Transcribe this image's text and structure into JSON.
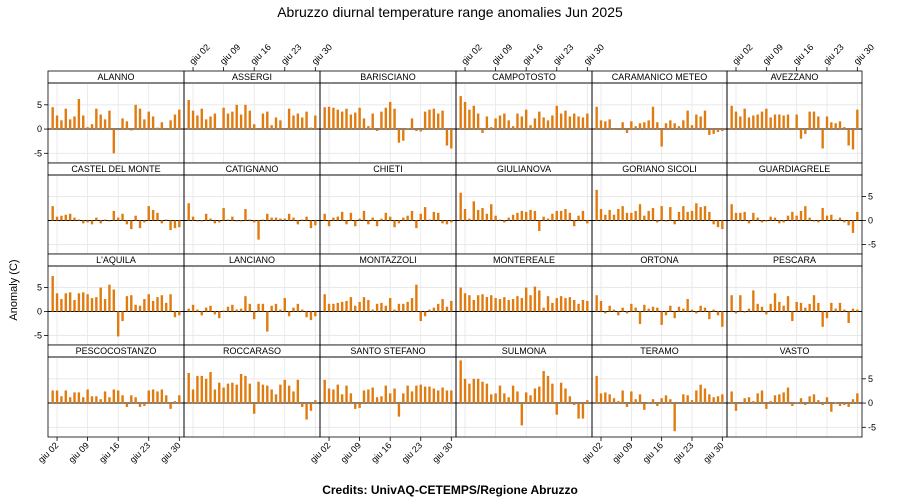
{
  "chart_data": {
    "type": "bar",
    "title": "Abruzzo diurnal temperature range anomalies Jun 2025",
    "ylabel": "Anomaly (C)",
    "credits": "Credits: UnivAQ-CETEMPS/Regione Abruzzo",
    "ylim": [
      -7,
      9.5
    ],
    "yticks": [
      -5,
      0,
      5
    ],
    "xticks": [
      "giu 02",
      "giu 09",
      "giu 16",
      "giu 23",
      "giu 30"
    ],
    "days": [
      1,
      2,
      3,
      4,
      5,
      6,
      7,
      8,
      9,
      10,
      11,
      12,
      13,
      14,
      15,
      16,
      17,
      18,
      19,
      20,
      21,
      22,
      23,
      24,
      25,
      26,
      27,
      28,
      29,
      30
    ],
    "grid": true,
    "bar_color": "#e07b10",
    "panels": [
      {
        "name": "ALANNO",
        "values": [
          4.5,
          2.8,
          1.8,
          4.2,
          2.0,
          2.6,
          6.2,
          2.8,
          0.4,
          1.0,
          4.2,
          3.0,
          2.0,
          3.8,
          -5.0,
          -0.2,
          2.2,
          1.6,
          -0.3,
          5.0,
          4.2,
          2.0,
          3.6,
          2.6,
          0.3,
          1.4,
          -0.2,
          1.8,
          3.0,
          4.0
        ]
      },
      {
        "name": "ASSERGI",
        "values": [
          6.0,
          3.8,
          2.8,
          4.2,
          2.0,
          2.6,
          3.2,
          -0.2,
          4.4,
          3.2,
          3.6,
          5.0,
          3.0,
          5.0,
          3.8,
          1.0,
          -0.2,
          3.2,
          3.6,
          0.8,
          2.4,
          1.8,
          -0.1,
          4.2,
          2.8,
          3.2,
          2.4,
          3.6,
          0.3,
          2.8
        ]
      },
      {
        "name": "BARISCIANO",
        "values": [
          4.5,
          4.6,
          4.4,
          4.0,
          3.6,
          4.2,
          3.0,
          3.4,
          4.4,
          2.2,
          0.6,
          3.2,
          -0.4,
          3.6,
          4.4,
          5.6,
          4.2,
          -2.8,
          -2.4,
          0.2,
          2.2,
          -0.4,
          -0.5,
          3.6,
          4.0,
          4.2,
          3.2,
          3.8,
          -3.4,
          -4.0
        ]
      },
      {
        "name": "CAMPOTOSTO",
        "values": [
          6.8,
          5.6,
          4.0,
          4.8,
          3.2,
          -0.8,
          2.6,
          0.4,
          2.2,
          2.8,
          3.2,
          1.8,
          0.6,
          3.2,
          2.6,
          4.0,
          0.8,
          2.2,
          3.6,
          2.4,
          1.8,
          2.8,
          4.8,
          3.2,
          3.8,
          2.6,
          3.2,
          2.6,
          2.4,
          3.2
        ]
      },
      {
        "name": "CARAMANICO METEO",
        "values": [
          4.6,
          1.8,
          1.6,
          2.0,
          0.0,
          -0.2,
          1.4,
          -0.8,
          1.6,
          0.6,
          1.2,
          1.4,
          1.8,
          4.6,
          1.4,
          -3.6,
          1.2,
          1.8,
          1.2,
          0.6,
          1.8,
          3.8,
          0.8,
          3.0,
          2.6,
          3.8,
          -1.2,
          -1.0,
          -0.6,
          -0.4
        ]
      },
      {
        "name": "AVEZZANO",
        "values": [
          4.8,
          3.6,
          2.6,
          4.2,
          2.4,
          2.8,
          3.0,
          3.6,
          4.2,
          2.4,
          3.0,
          3.0,
          2.8,
          3.0,
          -0.2,
          3.0,
          -2.0,
          -1.0,
          3.6,
          3.6,
          2.6,
          -4.0,
          2.6,
          1.4,
          1.2,
          1.6,
          0.4,
          -3.4,
          -4.2,
          4.0
        ]
      },
      {
        "name": "CASTEL DEL MONTE",
        "values": [
          3.0,
          0.8,
          1.0,
          1.2,
          1.4,
          0.6,
          0.2,
          -0.6,
          -0.4,
          -0.8,
          0.6,
          -0.6,
          0.2,
          -0.2,
          2.0,
          0.6,
          1.4,
          -0.8,
          -1.8,
          1.0,
          -1.6,
          -0.4,
          3.0,
          2.2,
          1.6,
          -0.6,
          0.2,
          -2.0,
          -1.6,
          -1.4
        ]
      },
      {
        "name": "CATIGNANO",
        "values": [
          3.6,
          0.8,
          -0.2,
          -0.2,
          1.4,
          0.4,
          -0.6,
          -0.4,
          2.6,
          0.2,
          0.8,
          -0.2,
          -0.2,
          2.4,
          0.2,
          -0.4,
          -4.0,
          0.2,
          1.4,
          0.6,
          0.6,
          0.4,
          0.4,
          1.4,
          0.6,
          -0.8,
          0.2,
          0.8,
          -1.6,
          -1.0
        ]
      },
      {
        "name": "CHIETI",
        "values": [
          1.4,
          -1.2,
          0.6,
          0.8,
          1.8,
          -0.8,
          1.6,
          -1.2,
          0.4,
          2.0,
          -0.8,
          0.6,
          -1.2,
          0.4,
          1.6,
          0.8,
          -1.4,
          -0.6,
          0.6,
          1.0,
          2.0,
          -1.6,
          1.4,
          2.8,
          0.2,
          1.8,
          1.6,
          -0.6,
          -0.8,
          -0.4
        ]
      },
      {
        "name": "GIULIANOVA",
        "values": [
          5.8,
          2.4,
          0.4,
          4.0,
          2.2,
          2.6,
          1.4,
          3.4,
          1.0,
          0.2,
          -0.4,
          0.6,
          1.2,
          1.6,
          2.0,
          1.8,
          2.2,
          2.0,
          -2.2,
          0.8,
          0.4,
          1.4,
          2.0,
          2.0,
          2.4,
          1.6,
          -1.2,
          1.0,
          2.0,
          -0.6
        ]
      },
      {
        "name": "GORIANO SICOLI",
        "values": [
          6.4,
          2.4,
          1.2,
          2.2,
          1.2,
          2.4,
          3.0,
          1.6,
          1.6,
          2.0,
          3.4,
          1.0,
          2.0,
          2.6,
          -0.4,
          3.0,
          -0.2,
          2.8,
          -0.8,
          1.8,
          3.0,
          1.8,
          2.0,
          3.6,
          2.8,
          3.0,
          1.8,
          -0.8,
          -1.4,
          -1.8
        ]
      },
      {
        "name": "GUARDIAGRELE",
        "values": [
          3.4,
          1.6,
          1.6,
          1.8,
          -0.6,
          1.6,
          0.6,
          -0.4,
          -0.2,
          0.8,
          0.6,
          -0.6,
          -0.4,
          1.0,
          1.8,
          1.0,
          2.0,
          3.0,
          0.6,
          -0.2,
          -0.4,
          2.6,
          1.0,
          1.2,
          0.2,
          0.6,
          -0.4,
          -1.0,
          -2.6,
          1.8
        ]
      },
      {
        "name": "L'AQUILA",
        "values": [
          7.4,
          3.8,
          2.6,
          3.8,
          4.0,
          2.4,
          3.8,
          4.0,
          3.6,
          2.8,
          3.0,
          5.0,
          2.6,
          5.6,
          4.6,
          -5.2,
          -2.0,
          3.2,
          3.4,
          1.4,
          1.2,
          2.6,
          3.6,
          2.2,
          3.0,
          3.4,
          1.8,
          3.6,
          -1.2,
          -0.8
        ]
      },
      {
        "name": "LANCIANO",
        "values": [
          0.6,
          1.4,
          0.4,
          -0.8,
          0.8,
          1.2,
          -0.6,
          -1.4,
          0.2,
          1.0,
          1.4,
          0.4,
          0.6,
          3.2,
          1.6,
          -1.6,
          1.6,
          1.6,
          -4.2,
          1.2,
          1.6,
          0.4,
          2.8,
          -1.0,
          0.8,
          1.6,
          0.4,
          -1.2,
          -1.8,
          -1.0
        ]
      },
      {
        "name": "MONTAZZOLI",
        "values": [
          3.6,
          1.6,
          1.6,
          1.8,
          2.0,
          2.2,
          3.0,
          1.2,
          2.0,
          3.0,
          2.4,
          0.4,
          1.6,
          1.8,
          1.2,
          2.8,
          0.4,
          1.6,
          1.6,
          2.0,
          2.8,
          5.6,
          -2.0,
          -1.0,
          0.4,
          0.8,
          1.6,
          2.6,
          1.0,
          2.2
        ]
      },
      {
        "name": "MONTEREALE",
        "values": [
          5.0,
          3.8,
          3.4,
          2.4,
          3.4,
          3.6,
          3.0,
          3.4,
          2.8,
          2.6,
          3.0,
          2.4,
          2.6,
          3.2,
          2.8,
          5.0,
          3.4,
          5.2,
          4.4,
          0.8,
          3.2,
          1.8,
          2.8,
          3.2,
          2.8,
          3.0,
          2.4,
          1.6,
          2.4,
          2.2
        ]
      },
      {
        "name": "ORTONA",
        "values": [
          3.4,
          2.2,
          -0.4,
          1.2,
          0.4,
          -0.8,
          0.8,
          -0.4,
          1.6,
          0.8,
          -2.6,
          1.4,
          0.6,
          1.0,
          0.8,
          -2.8,
          -0.8,
          1.2,
          -1.4,
          1.0,
          0.6,
          2.6,
          0.4,
          -0.4,
          1.2,
          0.8,
          -1.6,
          0.4,
          -0.8,
          -3.2
        ]
      },
      {
        "name": "PESCARA",
        "values": [
          3.4,
          -0.4,
          3.4,
          -0.2,
          0.6,
          4.4,
          1.6,
          1.0,
          -0.6,
          1.6,
          3.8,
          2.0,
          1.2,
          3.2,
          -2.0,
          2.0,
          1.8,
          0.8,
          1.6,
          3.4,
          1.8,
          -3.2,
          -1.4,
          1.8,
          0.6,
          1.8,
          0.4,
          -2.4,
          0.6,
          0.4
        ]
      },
      {
        "name": "PESCOCOSTANZO",
        "values": [
          2.6,
          2.6,
          1.4,
          2.6,
          1.2,
          2.2,
          2.2,
          1.2,
          2.8,
          1.4,
          1.4,
          0.8,
          2.4,
          1.2,
          2.8,
          2.6,
          1.6,
          -0.8,
          1.6,
          1.2,
          -0.8,
          -0.6,
          2.6,
          2.8,
          2.4,
          2.8,
          1.6,
          -1.2,
          0.4,
          1.6
        ]
      },
      {
        "name": "ROCCARASO",
        "values": [
          6.2,
          2.8,
          5.6,
          5.6,
          5.0,
          6.4,
          2.8,
          4.2,
          3.2,
          4.0,
          4.2,
          3.8,
          6.0,
          5.6,
          4.0,
          -2.2,
          4.4,
          3.8,
          3.6,
          2.8,
          1.8,
          3.8,
          4.8,
          3.6,
          2.4,
          4.8,
          -0.8,
          -3.4,
          -1.6,
          0.6
        ]
      },
      {
        "name": "SANTO STEFANO",
        "values": [
          4.8,
          3.0,
          2.8,
          3.8,
          1.8,
          3.6,
          2.0,
          -1.2,
          -1.0,
          2.6,
          2.8,
          3.2,
          1.2,
          1.4,
          3.6,
          2.0,
          3.0,
          -2.8,
          2.0,
          3.6,
          2.4,
          3.6,
          3.8,
          3.4,
          3.4,
          3.0,
          2.6,
          3.2,
          2.6,
          2.6
        ]
      },
      {
        "name": "SULMONA",
        "values": [
          8.8,
          5.0,
          4.0,
          5.0,
          5.0,
          4.4,
          4.0,
          1.8,
          2.0,
          3.6,
          2.0,
          1.2,
          3.6,
          2.4,
          -4.6,
          2.2,
          1.6,
          3.0,
          3.4,
          6.6,
          5.6,
          4.0,
          -2.4,
          4.2,
          3.0,
          1.4,
          -0.4,
          -3.2,
          -3.2,
          0.6
        ]
      },
      {
        "name": "TERAMO",
        "values": [
          5.6,
          2.0,
          2.2,
          1.8,
          1.0,
          0.4,
          2.6,
          -0.8,
          2.4,
          0.8,
          1.8,
          -1.4,
          0.2,
          0.8,
          -0.6,
          1.0,
          1.6,
          0.8,
          -5.8,
          -0.2,
          1.8,
          1.6,
          0.6,
          2.6,
          3.8,
          3.0,
          1.8,
          1.2,
          1.4,
          1.8
        ]
      },
      {
        "name": "VASTO",
        "values": [
          2.4,
          -1.6,
          -0.2,
          1.0,
          1.2,
          0.4,
          2.0,
          2.6,
          -1.2,
          0.4,
          1.6,
          1.8,
          2.2,
          3.2,
          -0.6,
          0.2,
          1.0,
          -0.4,
          1.4,
          1.8,
          0.6,
          -0.4,
          1.2,
          -1.8,
          0.2,
          -0.6,
          -0.4,
          -0.8,
          0.8,
          2.0
        ]
      }
    ]
  }
}
